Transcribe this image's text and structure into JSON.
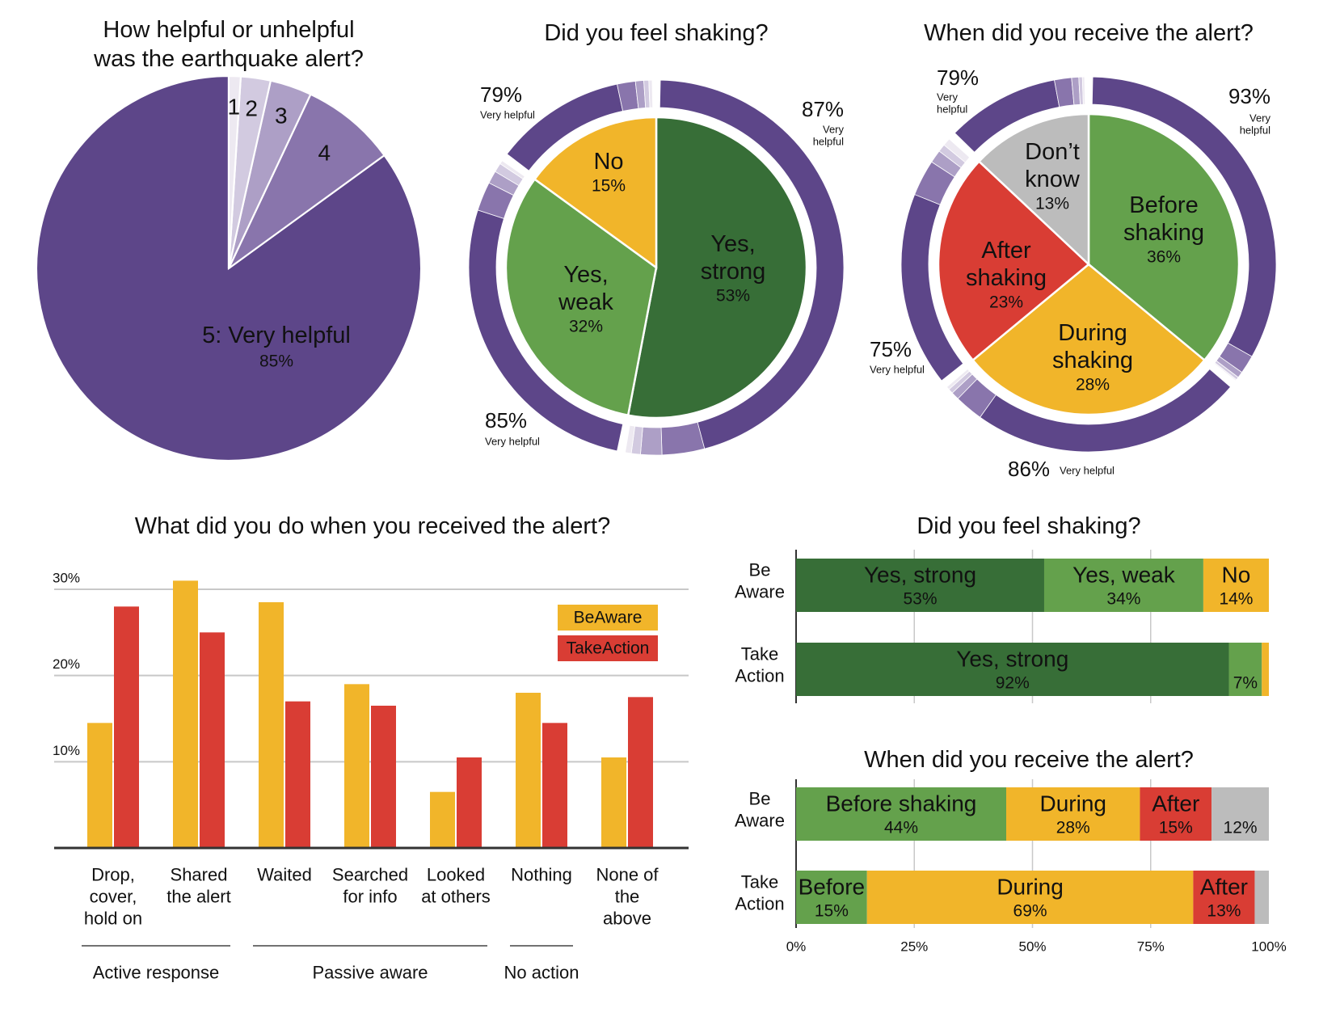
{
  "colors": {
    "purple5": "#5d4689",
    "purple4": "#8975ac",
    "purple3": "#ad9fc6",
    "purple2": "#d2cae0",
    "purple1": "#ede9f1",
    "dark_green": "#376e37",
    "light_green": "#64a14c",
    "yellow": "#f1b52a",
    "red": "#d93d34",
    "gray": "#bcbcbc",
    "grid": "#c8c8c8",
    "axis": "#333333"
  },
  "chart_data": [
    {
      "id": "helpfulness",
      "type": "pie",
      "title": "How helpful or unhelpful was the earthquake alert?",
      "title_lines": [
        "How helpful or unhelpful",
        "was the earthquake alert?"
      ],
      "slices": [
        {
          "key": "r5",
          "label": "5: Very helpful",
          "value": 85,
          "value_label": "85%",
          "color": "purple5"
        },
        {
          "key": "r4",
          "label": "4",
          "value": 8,
          "value_label": "",
          "color": "purple4"
        },
        {
          "key": "r3",
          "label": "3",
          "value": 3.5,
          "value_label": "",
          "color": "purple3"
        },
        {
          "key": "r2",
          "label": "2",
          "value": 2.5,
          "value_label": "",
          "color": "purple2"
        },
        {
          "key": "r1",
          "label": "1",
          "value": 1,
          "value_label": "",
          "color": "purple1"
        }
      ]
    },
    {
      "id": "shaking-donut",
      "type": "pie",
      "title": "Did you feel shaking?",
      "slices": [
        {
          "key": "yes-strong",
          "label_lines": [
            "Yes,",
            "strong"
          ],
          "value": 53,
          "value_label": "53%",
          "color": "dark_green",
          "ring": {
            "pct": "87%",
            "label_lines": [
              "Very",
              "helpful"
            ],
            "dist": [
              87,
              7,
              3.5,
              1.5,
              1
            ]
          }
        },
        {
          "key": "yes-weak",
          "label_lines": [
            "Yes,",
            "weak"
          ],
          "value": 32,
          "value_label": "32%",
          "color": "light_green",
          "ring": {
            "pct": "85%",
            "label_lines": [
              "Very helpful"
            ],
            "dist": [
              85,
              8,
              3.5,
              2.5,
              1
            ]
          }
        },
        {
          "key": "no",
          "label_lines": [
            "No"
          ],
          "value": 15,
          "value_label": "15%",
          "color": "yellow",
          "ring": {
            "pct": "79%",
            "label_lines": [
              "Very helpful"
            ],
            "dist": [
              79,
              11,
              5,
              3,
              2
            ]
          }
        }
      ]
    },
    {
      "id": "timing-donut",
      "type": "pie",
      "title": "When did you receive the alert?",
      "slices": [
        {
          "key": "before",
          "label_lines": [
            "Before",
            "shaking"
          ],
          "value": 36,
          "value_label": "36%",
          "color": "light_green",
          "ring": {
            "pct": "93%",
            "label_lines": [
              "Very",
              "helpful"
            ],
            "dist": [
              93,
              4.5,
              1.5,
              0.7,
              0.3
            ]
          }
        },
        {
          "key": "during",
          "label_lines": [
            "During",
            "shaking"
          ],
          "value": 28,
          "value_label": "28%",
          "color": "yellow",
          "ring": {
            "pct": "86%",
            "label_lines": [
              "Very helpful"
            ],
            "dist": [
              86,
              9,
              2.5,
              1.5,
              1
            ]
          }
        },
        {
          "key": "after",
          "label_lines": [
            "After",
            "shaking"
          ],
          "value": 23,
          "value_label": "23%",
          "color": "red",
          "ring": {
            "pct": "75%",
            "label_lines": [
              "Very helpful"
            ],
            "dist": [
              75,
              14,
              5,
              3,
              3
            ]
          }
        },
        {
          "key": "dont-know",
          "label_lines": [
            "Don’t",
            "know"
          ],
          "value": 13,
          "value_label": "13%",
          "color": "gray",
          "ring": {
            "pct": "79%",
            "label_lines": [
              "Very",
              "helpful"
            ],
            "dist": [
              79,
              12,
              5,
              2.5,
              1.5
            ]
          }
        }
      ]
    },
    {
      "id": "actions",
      "type": "bar",
      "title": "What did you do when you received the alert?",
      "categories": [
        {
          "key": "drop",
          "label_lines": [
            "Drop,",
            "cover,",
            "hold on"
          ]
        },
        {
          "key": "shared",
          "label_lines": [
            "Shared",
            "the alert"
          ]
        },
        {
          "key": "waited",
          "label_lines": [
            "Waited"
          ]
        },
        {
          "key": "searched",
          "label_lines": [
            "Searched",
            "for info"
          ]
        },
        {
          "key": "looked",
          "label_lines": [
            "Looked",
            "at others"
          ]
        },
        {
          "key": "nothing",
          "label_lines": [
            "Nothing"
          ]
        },
        {
          "key": "none",
          "label_lines": [
            "None of",
            "the",
            "above"
          ]
        }
      ],
      "series": [
        {
          "name": "BeAware",
          "color": "yellow",
          "values": [
            14.5,
            31,
            28.5,
            19,
            6.5,
            18,
            10.5
          ]
        },
        {
          "name": "TakeAction",
          "color": "red",
          "values": [
            28,
            25,
            17,
            16.5,
            10.5,
            14.5,
            17.5
          ]
        }
      ],
      "ylim": [
        0,
        32
      ],
      "yticks": [
        {
          "value": 10,
          "label": "10%"
        },
        {
          "value": 20,
          "label": "20%"
        },
        {
          "value": 30,
          "label": "30%"
        }
      ],
      "legend": "top-right",
      "groups": [
        {
          "label": "Active response",
          "from": 0,
          "to": 1
        },
        {
          "label": "Passive aware",
          "from": 2,
          "to": 4
        },
        {
          "label": "No action",
          "from": 5,
          "to": 5
        }
      ]
    },
    {
      "id": "shaking-stacked",
      "type": "bar",
      "orientation": "horizontal-stacked",
      "title": "Did you feel shaking?",
      "rows": [
        {
          "key": "be-aware",
          "label_lines": [
            "Be",
            "Aware"
          ],
          "segments": [
            {
              "key": "yes-strong",
              "name": "Yes, strong",
              "value": 53,
              "value_label": "53%",
              "color": "dark_green"
            },
            {
              "key": "yes-weak",
              "name": "Yes, weak",
              "value": 34,
              "value_label": "34%",
              "color": "light_green"
            },
            {
              "key": "no",
              "name": "No",
              "value": 14,
              "value_label": "14%",
              "color": "yellow"
            }
          ]
        },
        {
          "key": "take-action",
          "label_lines": [
            "Take",
            "Action"
          ],
          "segments": [
            {
              "key": "yes-strong",
              "name": "Yes, strong",
              "value": 92,
              "value_label": "92%",
              "color": "dark_green"
            },
            {
              "key": "yes-weak",
              "name": "",
              "value": 7,
              "value_label": "7%",
              "color": "light_green"
            },
            {
              "key": "no",
              "name": "",
              "value": 1.5,
              "value_label": "",
              "color": "yellow"
            }
          ]
        }
      ],
      "xlim": [
        0,
        100
      ]
    },
    {
      "id": "timing-stacked",
      "type": "bar",
      "orientation": "horizontal-stacked",
      "title": "When did you receive the alert?",
      "rows": [
        {
          "key": "be-aware",
          "label_lines": [
            "Be",
            "Aware"
          ],
          "segments": [
            {
              "key": "before",
              "name": "Before shaking",
              "value": 44,
              "value_label": "44%",
              "color": "light_green"
            },
            {
              "key": "during",
              "name": "During",
              "value": 28,
              "value_label": "28%",
              "color": "yellow"
            },
            {
              "key": "after",
              "name": "After",
              "value": 15,
              "value_label": "15%",
              "color": "red"
            },
            {
              "key": "dont-know",
              "name": "",
              "value": 12,
              "value_label": "12%",
              "color": "gray"
            }
          ]
        },
        {
          "key": "take-action",
          "label_lines": [
            "Take",
            "Action"
          ],
          "segments": [
            {
              "key": "before",
              "name": "Before",
              "value": 15,
              "value_label": "15%",
              "color": "light_green"
            },
            {
              "key": "during",
              "name": "During",
              "value": 69,
              "value_label": "69%",
              "color": "yellow"
            },
            {
              "key": "after",
              "name": "After",
              "value": 13,
              "value_label": "13%",
              "color": "red"
            },
            {
              "key": "dont-know",
              "name": "",
              "value": 3,
              "value_label": "",
              "color": "gray"
            }
          ]
        }
      ],
      "xlim": [
        0,
        100
      ],
      "xticks": [
        {
          "value": 0,
          "label": "0%"
        },
        {
          "value": 25,
          "label": "25%"
        },
        {
          "value": 50,
          "label": "50%"
        },
        {
          "value": 75,
          "label": "75%"
        },
        {
          "value": 100,
          "label": "100%"
        }
      ]
    }
  ]
}
